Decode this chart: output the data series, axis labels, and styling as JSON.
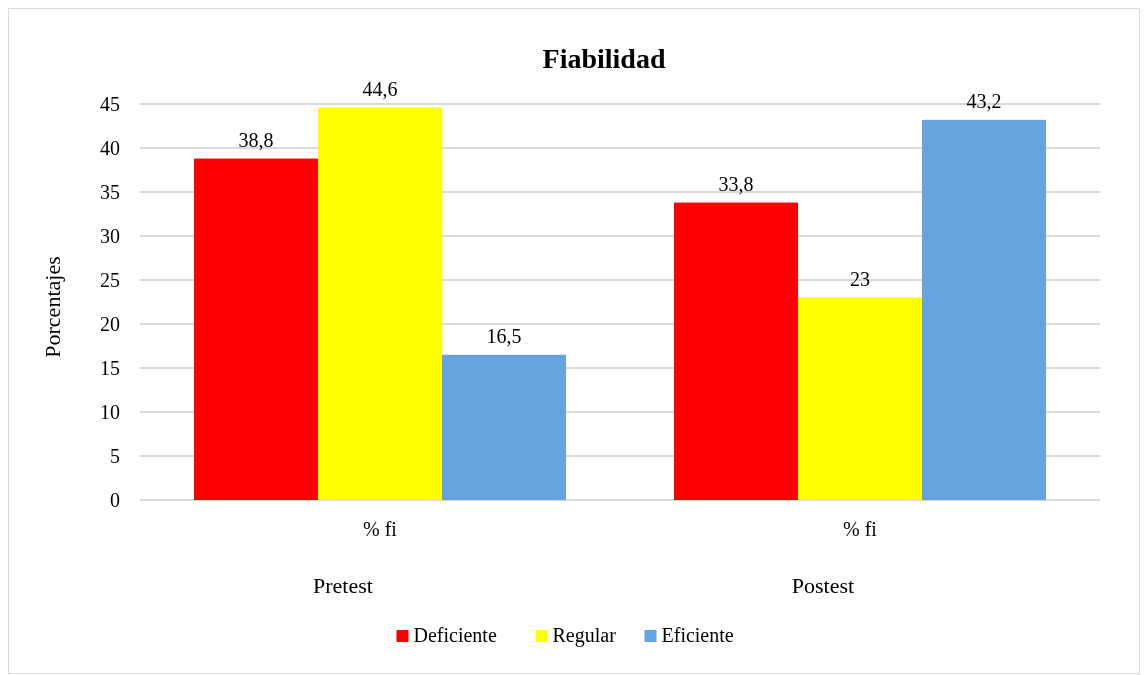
{
  "chart_data": {
    "type": "bar",
    "title": "Fiabilidad",
    "ylabel": "Porcentajes",
    "categories": [
      "% fi",
      "% fi"
    ],
    "annotations": [
      "Pretest",
      "Postest"
    ],
    "series": [
      {
        "name": "Deficiente",
        "color": "#ff0000",
        "values": [
          38.8,
          33.8
        ],
        "value_labels": [
          "38,8",
          "33,8"
        ]
      },
      {
        "name": "Regular",
        "color": "#ffff00",
        "values": [
          44.6,
          23
        ],
        "value_labels": [
          "44,6",
          "23"
        ]
      },
      {
        "name": "Eficiente",
        "color": "#64a3df",
        "values": [
          16.5,
          43.2
        ],
        "value_labels": [
          "16,5",
          "43,2"
        ]
      }
    ],
    "ylim": [
      0,
      45
    ],
    "yticks": [
      0,
      5,
      10,
      15,
      20,
      25,
      30,
      35,
      40,
      45
    ],
    "grid": "y",
    "legend": "bottom"
  }
}
